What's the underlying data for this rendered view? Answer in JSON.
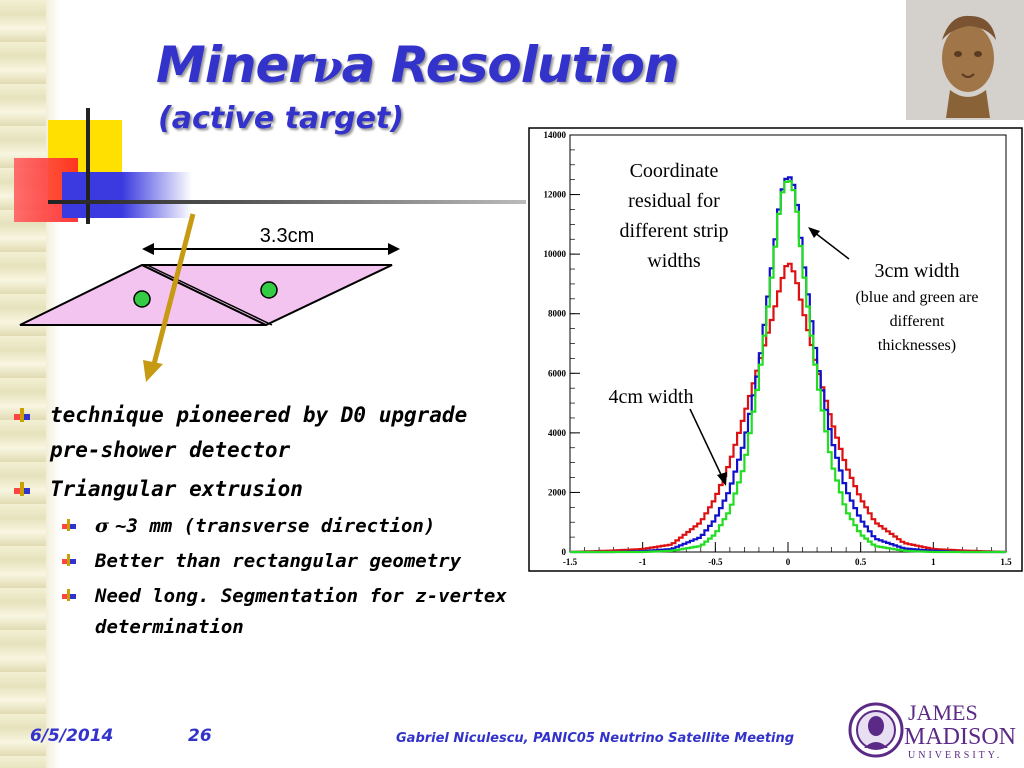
{
  "slide": {
    "title_part1": "Miner",
    "title_nu": "ν",
    "title_part2": "a Resolution",
    "subtitle": "(active target)"
  },
  "diagram": {
    "width_label": "3.3cm"
  },
  "bullets": [
    {
      "text": "technique pioneered by D0 upgrade pre-shower detector"
    },
    {
      "text": "Triangular extrusion"
    }
  ],
  "sub_bullets": [
    {
      "sigma": "σ",
      "text": "~3 mm (transverse direction)"
    },
    {
      "text": "Better than rectangular geometry"
    },
    {
      "text": "Need long. Segmentation for z-vertex determination"
    }
  ],
  "footer": {
    "date": "6/5/2014",
    "page": "26",
    "text": "Gabriel Niculescu, PANIC05 Neutrino Satellite Meeting",
    "logo_line1": "JAMES",
    "logo_line2": "MADISON",
    "logo_line3": "UNIVERSITY."
  },
  "colors": {
    "title": "#3333cc",
    "series_4cm": "#dd1111",
    "series_blue": "#1111cc",
    "series_green": "#22dd22"
  },
  "chart_data": {
    "type": "line",
    "xlim": [
      -1.5,
      1.5
    ],
    "ylim": [
      0,
      14000
    ],
    "x_ticks": [
      -1.5,
      -1,
      -0.5,
      0,
      0.5,
      1,
      1.5
    ],
    "x_tick_labels": [
      "-1.5",
      "-1",
      "-0.5",
      "0",
      "0.5",
      "1",
      "1.5"
    ],
    "y_ticks": [
      0,
      2000,
      4000,
      6000,
      8000,
      10000,
      12000,
      14000
    ],
    "y_tick_labels": [
      "0",
      "2000",
      "4000",
      "6000",
      "8000",
      "10000",
      "12000",
      "14000"
    ],
    "annotation_main": [
      "Coordinate",
      "residual for",
      "different strip",
      "widths"
    ],
    "annotation_3cm": "3cm width",
    "annotation_3cm_note": [
      "(blue and green are",
      "different",
      "thicknesses)"
    ],
    "annotation_4cm": "4cm width",
    "x": [
      -1.5,
      -1.2,
      -1.0,
      -0.8,
      -0.6,
      -0.5,
      -0.4,
      -0.3,
      -0.2,
      -0.1,
      -0.05,
      0,
      0.05,
      0.1,
      0.2,
      0.3,
      0.4,
      0.5,
      0.6,
      0.8,
      1.0,
      1.2,
      1.5
    ],
    "series": [
      {
        "color": "#dd1111",
        "values": [
          0,
          50,
          100,
          250,
          1000,
          1800,
          3000,
          4600,
          6300,
          8000,
          9000,
          9800,
          9300,
          8200,
          6200,
          4400,
          2900,
          1800,
          1000,
          300,
          100,
          50,
          0
        ]
      },
      {
        "color": "#1111cc",
        "values": [
          0,
          0,
          30,
          100,
          500,
          1100,
          2100,
          3700,
          6200,
          10000,
          12000,
          12700,
          12200,
          10000,
          6400,
          3800,
          2100,
          1100,
          450,
          120,
          40,
          0,
          0
        ]
      },
      {
        "color": "#22dd22",
        "values": [
          0,
          0,
          0,
          40,
          200,
          600,
          1400,
          2900,
          5800,
          9700,
          11900,
          12600,
          12000,
          9700,
          5800,
          3000,
          1400,
          600,
          200,
          40,
          0,
          0,
          0
        ]
      }
    ]
  }
}
